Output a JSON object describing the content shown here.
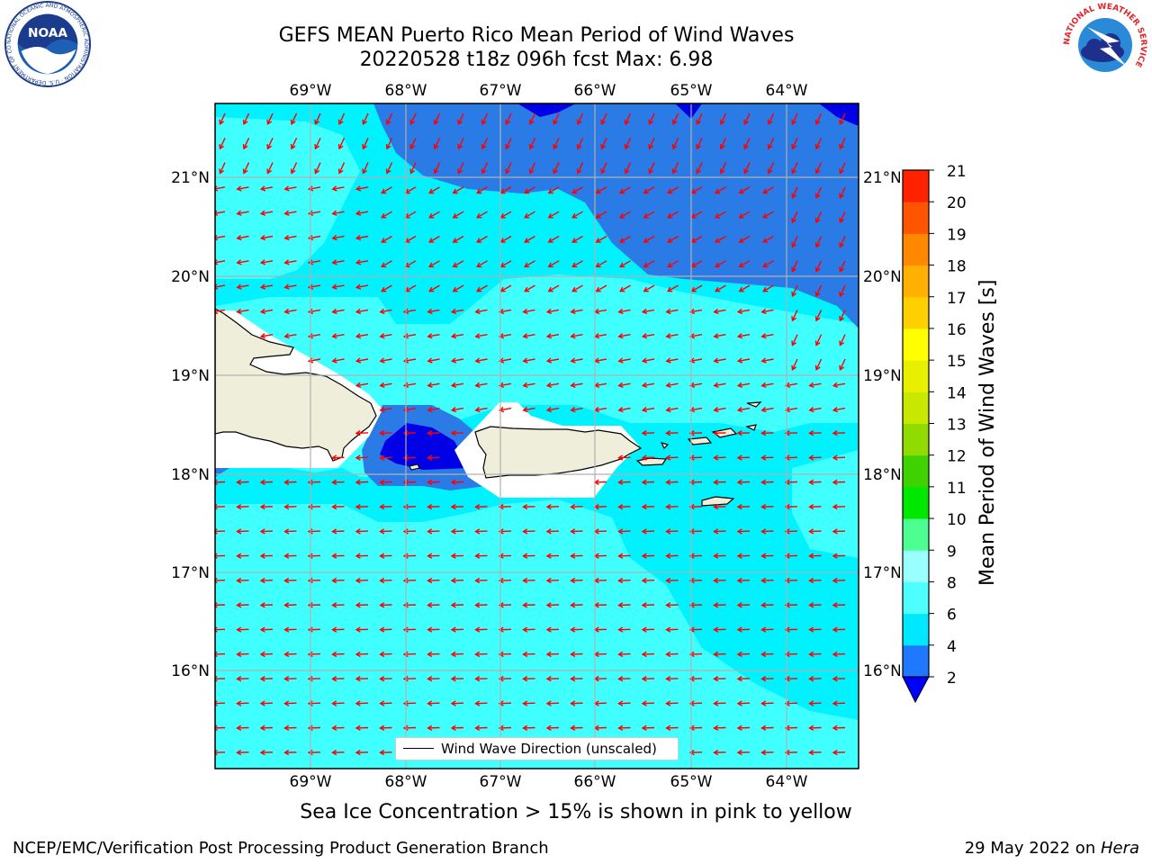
{
  "title": {
    "line1": "GEFS MEAN Puerto Rico Mean Period of Wind Waves",
    "line2": "20220528 t18z 096h fcst   Max: 6.98"
  },
  "map": {
    "lon_labels": [
      "69°W",
      "68°W",
      "67°W",
      "66°W",
      "65°W",
      "64°W"
    ],
    "lat_labels": [
      "21°N",
      "20°N",
      "19°N",
      "18°N",
      "17°N",
      "16°N"
    ],
    "legend_label": "Wind Wave Direction (unscaled)",
    "colors": {
      "land": "#efeedb",
      "band_2_4": "#2a7be6",
      "band_0_2": "#0000e6",
      "band_4_6": "#00f2ff",
      "band_6_8": "#40ffff",
      "arrow": "#ff0000"
    }
  },
  "colorbar": {
    "label": "Mean Period of Wind Waves [s]",
    "ticks": [
      "2",
      "4",
      "6",
      "8",
      "9",
      "10",
      "11",
      "12",
      "13",
      "14",
      "15",
      "16",
      "17",
      "18",
      "19",
      "20",
      "21"
    ],
    "colors": [
      "#1f78ff",
      "#00e8ff",
      "#4dffff",
      "#99ffff",
      "#4dff90",
      "#00e800",
      "#40d200",
      "#90dc00",
      "#c8e800",
      "#e8f000",
      "#ffff00",
      "#ffd000",
      "#ffb000",
      "#ff8800",
      "#ff5500",
      "#ff2200"
    ],
    "extend_color": "#0000ff"
  },
  "sea_ice_note": "Sea Ice Concentration > 15% is shown in pink to yellow",
  "footer": {
    "left": "NCEP/EMC/Verification Post Processing Product Generation Branch",
    "right_prefix": "29 May 2022 on ",
    "right_host": "Hera"
  },
  "logos": {
    "noaa_text": "NOAA",
    "noaa_ring": "NATIONAL OCEANIC AND ATMOSPHERIC ADMINISTRATION · U.S. DEPARTMENT OF COMMERCE",
    "nws_ring": "NATIONAL WEATHER SERVICE"
  }
}
